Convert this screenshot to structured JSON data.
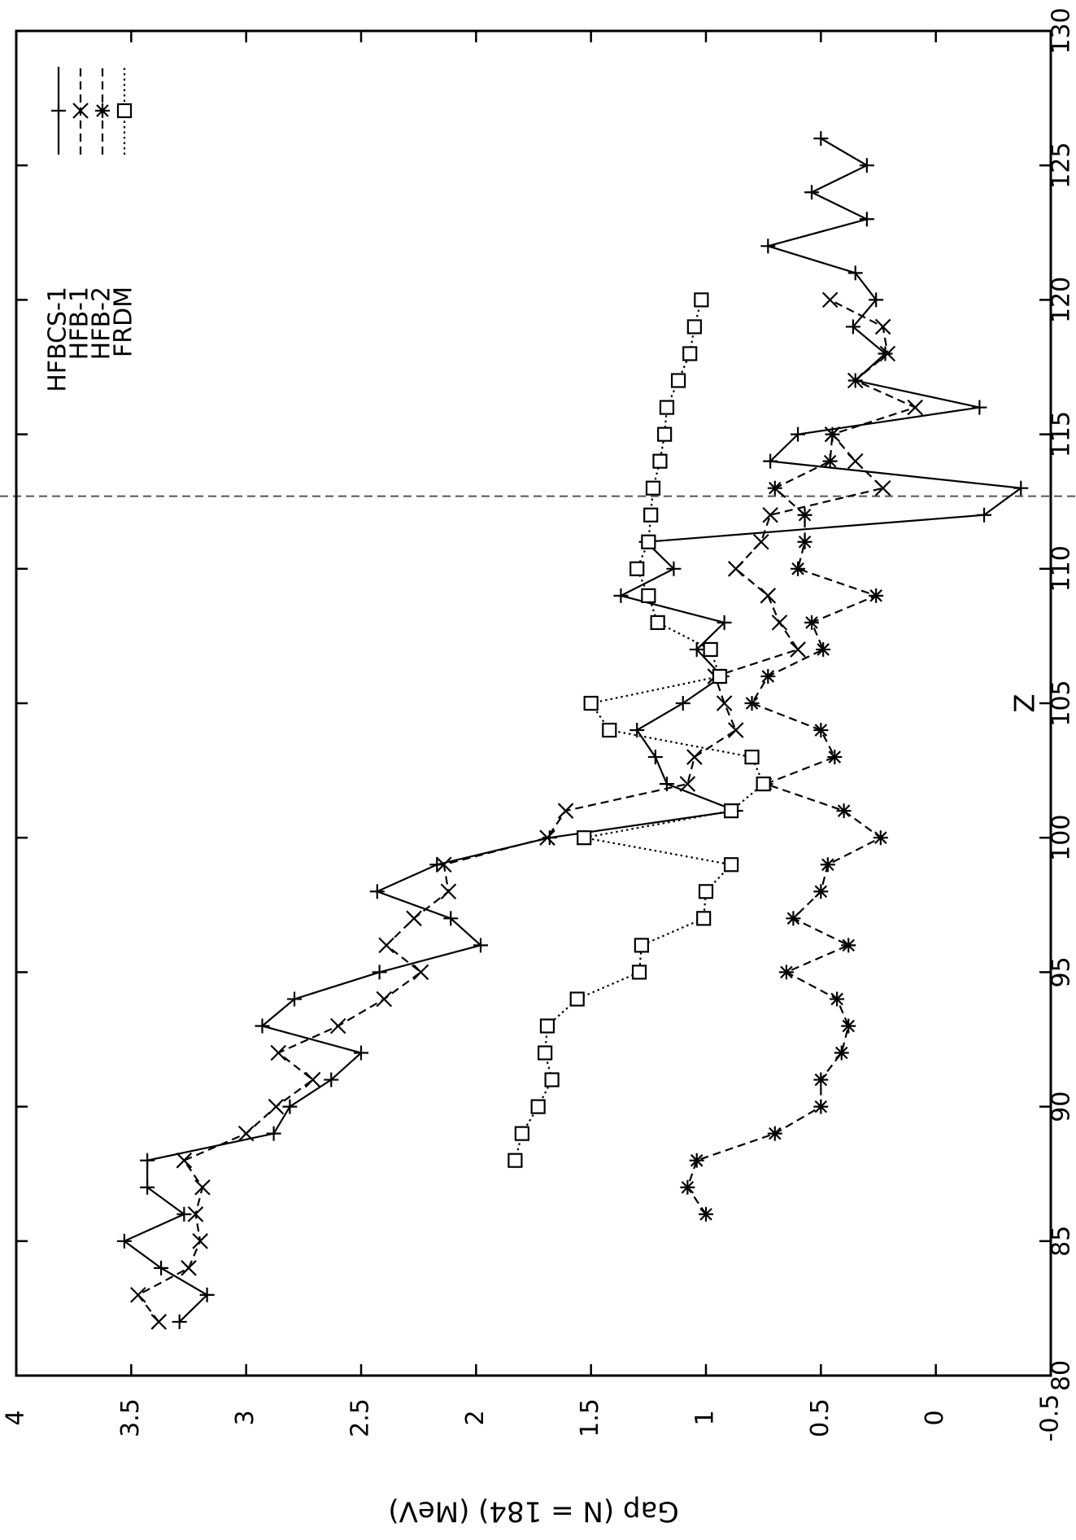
{
  "chart_data": {
    "type": "line",
    "xlabel": "Z",
    "ylabel": "Gap (N = 184)  (MeV)",
    "xlim": [
      80,
      130
    ],
    "ylim": [
      -0.5,
      4
    ],
    "xticks": [
      80,
      85,
      90,
      95,
      100,
      105,
      110,
      115,
      120,
      125,
      130
    ],
    "yticks": [
      -0.5,
      0,
      0.5,
      1,
      1.5,
      2,
      2.5,
      3,
      3.5,
      4
    ],
    "xtick_labels": [
      "80",
      "85",
      "90",
      "95",
      "100",
      "105",
      "110",
      "115",
      "120",
      "125",
      "130"
    ],
    "ytick_labels": [
      "-0.5",
      "0",
      "0.5",
      "1",
      "1.5",
      "2",
      "2.5",
      "3",
      "3.5",
      "4"
    ],
    "reference_line_x": 112.7,
    "legend_position": "top-left",
    "series": [
      {
        "name": "HFBCS-1",
        "style": "solid",
        "marker": "plus",
        "x": [
          82,
          83,
          84,
          85,
          86,
          87,
          88,
          89,
          90,
          91,
          92,
          93,
          94,
          95,
          96,
          97,
          98,
          99,
          100,
          101,
          102,
          103,
          104,
          105,
          106,
          107,
          108,
          109,
          110,
          111,
          112,
          113,
          114,
          115,
          116,
          117,
          118,
          119,
          120,
          121,
          122,
          123,
          124,
          125,
          126
        ],
        "y": [
          3.29,
          3.17,
          3.37,
          3.53,
          3.27,
          3.43,
          3.43,
          2.88,
          2.81,
          2.63,
          2.5,
          2.93,
          2.79,
          2.42,
          1.98,
          2.11,
          2.43,
          2.17,
          1.68,
          0.87,
          1.17,
          1.22,
          1.3,
          1.1,
          0.93,
          1.04,
          0.92,
          1.37,
          1.14,
          1.26,
          -0.21,
          -0.37,
          0.72,
          0.6,
          -0.19,
          0.35,
          0.22,
          0.36,
          0.26,
          0.35,
          0.73,
          0.3,
          0.54,
          0.3,
          0.5
        ]
      },
      {
        "name": "HFB-1",
        "style": "dashed",
        "marker": "x",
        "x": [
          82,
          83,
          84,
          85,
          86,
          87,
          88,
          89,
          90,
          91,
          92,
          93,
          94,
          95,
          96,
          97,
          98,
          99,
          100,
          101,
          102,
          103,
          104,
          105,
          106,
          107,
          108,
          109,
          110,
          111,
          112,
          113,
          114,
          115,
          116,
          117,
          118,
          119,
          120
        ],
        "y": [
          3.38,
          3.47,
          3.25,
          3.2,
          3.22,
          3.19,
          3.27,
          3.0,
          2.87,
          2.71,
          2.86,
          2.6,
          2.4,
          2.24,
          2.39,
          2.27,
          2.12,
          2.14,
          1.69,
          1.61,
          1.08,
          1.05,
          0.87,
          0.92,
          0.96,
          0.6,
          0.68,
          0.73,
          0.87,
          0.76,
          0.72,
          0.23,
          0.35,
          0.45,
          0.09,
          0.35,
          0.21,
          0.23,
          0.46
        ]
      },
      {
        "name": "HFB-2",
        "style": "dashed",
        "marker": "star",
        "x": [
          86,
          87,
          88,
          89,
          90,
          91,
          92,
          93,
          94,
          95,
          96,
          97,
          98,
          99,
          100,
          101,
          102,
          103,
          104,
          105,
          106,
          107,
          108,
          109,
          110,
          111,
          112,
          113,
          114,
          115
        ],
        "y": [
          1.0,
          1.08,
          1.04,
          0.7,
          0.5,
          0.5,
          0.41,
          0.38,
          0.43,
          0.65,
          0.38,
          0.62,
          0.5,
          0.47,
          0.24,
          0.4,
          0.74,
          0.44,
          0.5,
          0.8,
          0.73,
          0.49,
          0.54,
          0.26,
          0.6,
          0.57,
          0.57,
          0.7,
          0.46,
          0.45
        ]
      },
      {
        "name": "FRDM",
        "style": "dotted",
        "marker": "square",
        "x": [
          88,
          89,
          90,
          91,
          92,
          93,
          94,
          95,
          96,
          97,
          98,
          99,
          100,
          101,
          102,
          103,
          104,
          105,
          106,
          107,
          108,
          109,
          110,
          111,
          112,
          113,
          114,
          115,
          116,
          117,
          118,
          119,
          120
        ],
        "y": [
          1.83,
          1.8,
          1.73,
          1.67,
          1.7,
          1.69,
          1.56,
          1.29,
          1.28,
          1.01,
          1.0,
          0.89,
          1.53,
          0.89,
          0.75,
          0.8,
          1.42,
          1.5,
          0.94,
          0.98,
          1.21,
          1.25,
          1.3,
          1.25,
          1.24,
          1.23,
          1.2,
          1.18,
          1.17,
          1.12,
          1.07,
          1.05,
          1.02
        ]
      }
    ]
  }
}
